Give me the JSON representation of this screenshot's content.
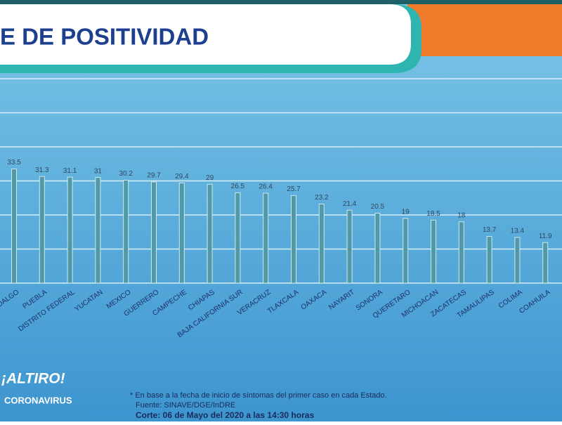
{
  "chart_data": {
    "type": "bar",
    "title": "E DE POSITIVIDAD",
    "categories": [
      "HIDALGO",
      "PUEBLA",
      "DISTRITO FEDERAL",
      "YUCATAN",
      "MEXICO",
      "GUERRERO",
      "CAMPECHE",
      "CHIAPAS",
      "BAJA CALIFORNIA SUR",
      "VERACRUZ",
      "TLAXCALA",
      "OAXACA",
      "NAYARIT",
      "SONORA",
      "QUERETARO",
      "MICHOACAN",
      "ZACATECAS",
      "TAMAULIPAS",
      "COLIMA",
      "COAHUILA"
    ],
    "values": [
      33.5,
      31.3,
      31.1,
      31.0,
      30.2,
      29.7,
      29.4,
      29.0,
      26.5,
      26.4,
      25.7,
      23.2,
      21.4,
      20.5,
      19.0,
      18.5,
      18.0,
      13.7,
      13.4,
      11.9
    ],
    "color": "#4f9aa6",
    "ylim": [
      0,
      60
    ],
    "yticks": [
      0,
      10,
      20,
      30,
      40,
      50,
      60
    ],
    "grid": true,
    "notes": [
      "* En base a la fecha de inicio de síntomas del primer caso en cada Estado.",
      "Fuente: SINAVE/DGE/InDRE",
      "Corte: 06 de Mayo del 2020 a las 14:30 horas"
    ],
    "logo": [
      "¡ALTIRO!",
      "CORONAVIRUS"
    ]
  }
}
